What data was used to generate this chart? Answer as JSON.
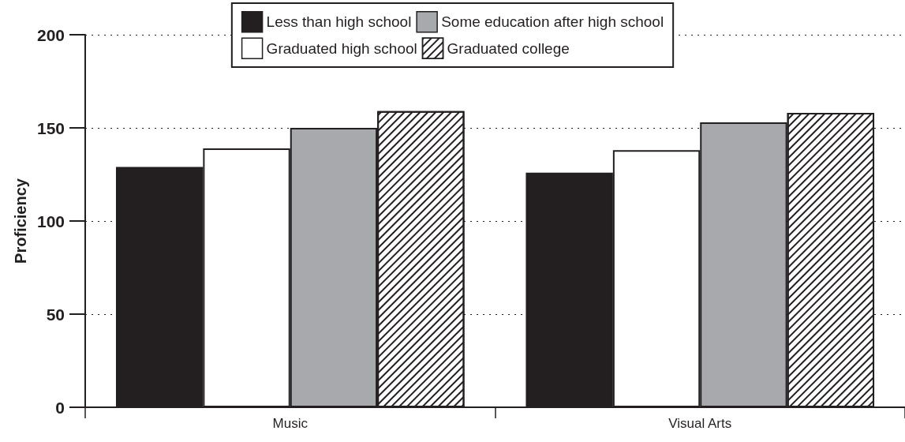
{
  "chart_data": {
    "type": "bar",
    "ylabel": "Proficiency",
    "categories": [
      "Music",
      "Visual Arts"
    ],
    "series": [
      {
        "name": "Less than high school",
        "color": "#231f20",
        "values": [
          129,
          126
        ]
      },
      {
        "name": "Graduated high school",
        "color": "#ffffff",
        "values": [
          139,
          138
        ]
      },
      {
        "name": "Some education after high school",
        "color": "#a7a9ac",
        "values": [
          150,
          153
        ]
      },
      {
        "name": "Graduated college",
        "color": "#ffffff",
        "values": [
          159,
          158
        ]
      }
    ],
    "ylim": [
      0,
      200
    ],
    "yticks": [
      0,
      50,
      100,
      150,
      200
    ],
    "grid": "y",
    "legend": "top"
  }
}
